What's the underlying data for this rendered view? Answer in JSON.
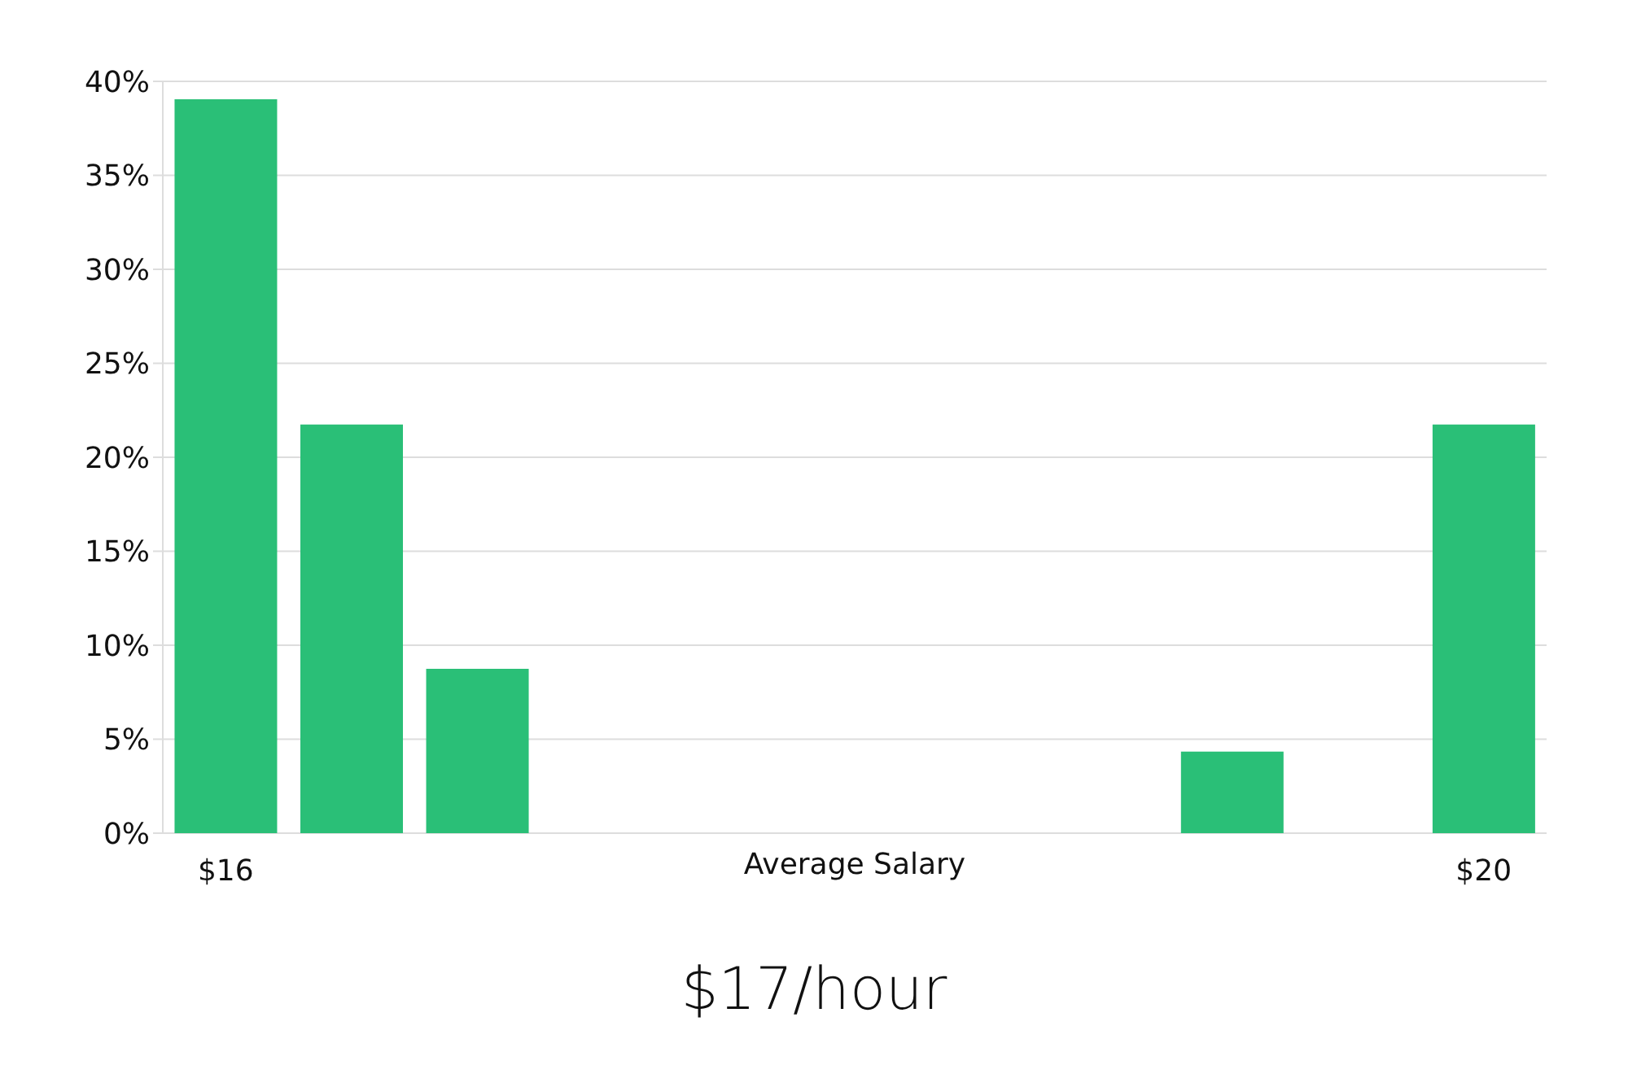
{
  "chart_data": {
    "type": "bar",
    "title": "$17/hour",
    "xlabel": "Average Salary",
    "categories": [
      "$16",
      null,
      null,
      null,
      null,
      null,
      null,
      null,
      null,
      null,
      "$20"
    ],
    "values": [
      39,
      21.7,
      8.7,
      0,
      0,
      0,
      0,
      0,
      4.3,
      0,
      21.7
    ],
    "color": "#2abf77",
    "ylim": [
      0,
      40
    ],
    "yticks": [
      {
        "value": 0,
        "label": "0%"
      },
      {
        "value": 5,
        "label": "5%"
      },
      {
        "value": 10,
        "label": "10%"
      },
      {
        "value": 15,
        "label": "15%"
      },
      {
        "value": 20,
        "label": "20%"
      },
      {
        "value": 25,
        "label": "25%"
      },
      {
        "value": 30,
        "label": "30%"
      },
      {
        "value": 35,
        "label": "35%"
      },
      {
        "value": 40,
        "label": "40%"
      }
    ],
    "grid": "y"
  }
}
